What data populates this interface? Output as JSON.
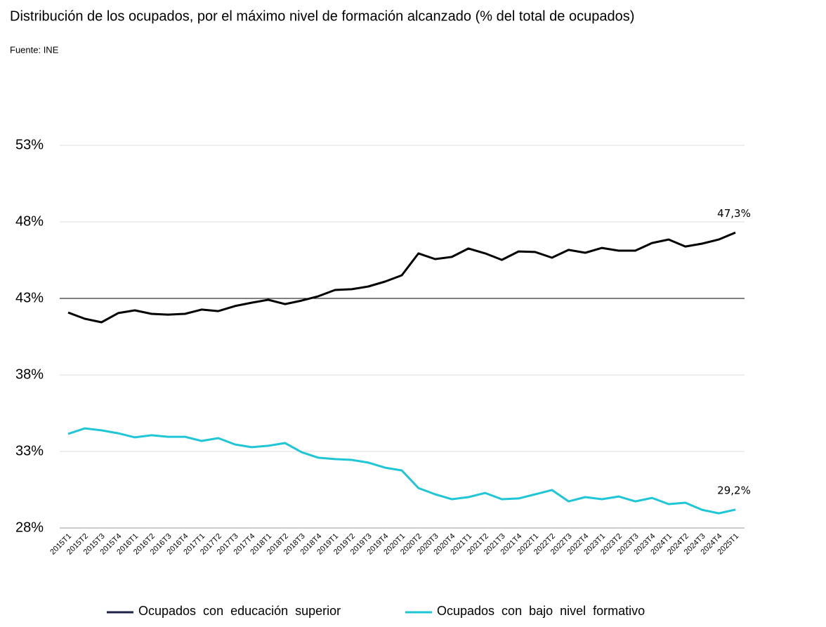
{
  "chart_data": {
    "type": "line",
    "title": "Distribución  de los ocupados,  por el máximo  nivel de formación alcanzado (% del total de ocupados)",
    "subtitle": "Fuente: INE",
    "categories": [
      "2015T1",
      "2015T2",
      "2015T3",
      "2015T4",
      "2016T1",
      "2016T2",
      "2016T3",
      "2016T4",
      "2017T1",
      "2017T2",
      "2017T3",
      "2017T4",
      "2018T1",
      "2018T2",
      "2018T3",
      "2018T4",
      "2019T1",
      "2019T2",
      "2019T3",
      "2019T4",
      "2020T1",
      "2020T2",
      "2020T3",
      "2020T4",
      "2021T1",
      "2021T2",
      "2021T3",
      "2021T4",
      "2022T1",
      "2022T2",
      "2022T3",
      "2022T4",
      "2023T1",
      "2023T2",
      "2023T3",
      "2023T4",
      "2024T1",
      "2024T2",
      "2024T3",
      "2024T4",
      "2025T1"
    ],
    "series": [
      {
        "name": "Ocupados  con  educación  superior",
        "color": "#000000",
        "legend_color": "#1b2147",
        "values": [
          42.08,
          41.67,
          41.44,
          42.04,
          42.22,
          41.99,
          41.94,
          41.99,
          42.27,
          42.17,
          42.5,
          42.72,
          42.91,
          42.63,
          42.86,
          43.14,
          43.55,
          43.6,
          43.78,
          44.1,
          44.51,
          45.94,
          45.57,
          45.71,
          46.26,
          45.94,
          45.52,
          46.07,
          46.03,
          45.66,
          46.17,
          45.98,
          46.3,
          46.12,
          46.12,
          46.62,
          46.85,
          46.39,
          46.58,
          46.85,
          47.3
        ],
        "value_labels": [
          null,
          null,
          null,
          null,
          null,
          null,
          null,
          null,
          null,
          null,
          null,
          null,
          null,
          null,
          null,
          null,
          null,
          null,
          null,
          null,
          null,
          null,
          null,
          null,
          null,
          null,
          null,
          null,
          null,
          null,
          null,
          null,
          null,
          null,
          null,
          null,
          null,
          null,
          null,
          null,
          "47,3%"
        ]
      },
      {
        "name": "Ocupados  con  bajo  nivel  formativo",
        "color": "#1fc6d6",
        "legend_color": "#1fc6d6",
        "values": [
          34.15,
          34.51,
          34.38,
          34.19,
          33.92,
          34.06,
          33.96,
          33.96,
          33.69,
          33.87,
          33.46,
          33.28,
          33.37,
          33.55,
          32.95,
          32.59,
          32.5,
          32.45,
          32.27,
          31.94,
          31.76,
          30.61,
          30.2,
          29.88,
          30.02,
          30.29,
          29.88,
          29.93,
          30.2,
          30.48,
          29.74,
          30.02,
          29.88,
          30.06,
          29.74,
          29.97,
          29.56,
          29.65,
          29.19,
          28.96,
          29.2
        ],
        "value_labels": [
          null,
          null,
          null,
          null,
          null,
          null,
          null,
          null,
          null,
          null,
          null,
          null,
          null,
          null,
          null,
          null,
          null,
          null,
          null,
          null,
          null,
          null,
          null,
          null,
          null,
          null,
          null,
          null,
          null,
          null,
          null,
          null,
          null,
          null,
          null,
          null,
          null,
          null,
          null,
          null,
          "29,2%"
        ]
      }
    ],
    "ylim": [
      28,
      53
    ],
    "yticks": [
      {
        "value": 28,
        "label": "28%"
      },
      {
        "value": 33,
        "label": "33%"
      },
      {
        "value": 38,
        "label": "38%"
      },
      {
        "value": 43,
        "label": "43%"
      },
      {
        "value": 48,
        "label": "48%"
      },
      {
        "value": 53,
        "label": "53%"
      }
    ],
    "grid": true,
    "x_axis_crosses": 43,
    "legend": "bottom"
  }
}
